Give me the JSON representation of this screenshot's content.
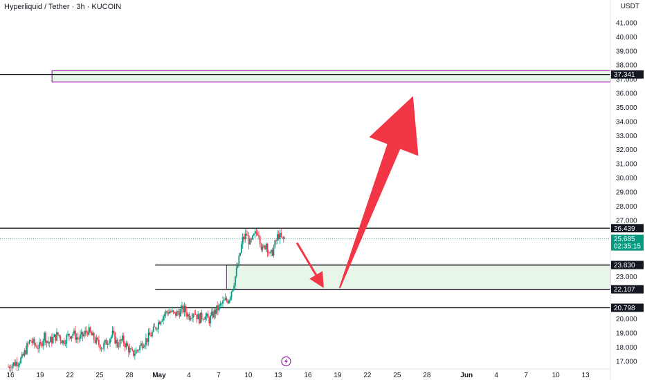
{
  "header": {
    "title": "Hyperliquid / Tether · 3h · KUCOIN",
    "quote_currency": "USDT"
  },
  "colors": {
    "up": "#089981",
    "down": "#f23645",
    "zone_border": "#9c27b0",
    "zone_fill": "#e8f5e9",
    "arrow": "#f23645",
    "level_line": "#000000",
    "current_price_bg": "#089981"
  },
  "chart_data": {
    "type": "candlestick",
    "y_axis": {
      "min": 16.6,
      "max": 42.0,
      "ticks": [
        17,
        18,
        19,
        20,
        21,
        22,
        23,
        24,
        25,
        26,
        27,
        28,
        29,
        30,
        31,
        32,
        33,
        34,
        35,
        36,
        37,
        38,
        39,
        40,
        41
      ],
      "tick_labels": [
        "17.000",
        "18.000",
        "19.000",
        "20.000",
        "",
        "",
        "23.000",
        "",
        "",
        "",
        "27.000",
        "28.000",
        "29.000",
        "30.000",
        "31.000",
        "32.000",
        "33.000",
        "34.000",
        "35.000",
        "36.000",
        "37.000",
        "38.000",
        "39.000",
        "40.000",
        "41.000"
      ]
    },
    "x_axis": {
      "ticks": [
        {
          "label": "16",
          "day": 16
        },
        {
          "label": "19",
          "day": 19
        },
        {
          "label": "22",
          "day": 22
        },
        {
          "label": "25",
          "day": 25
        },
        {
          "label": "28",
          "day": 28
        },
        {
          "label": "May",
          "day": 31,
          "bold": true
        },
        {
          "label": "4",
          "day": 34
        },
        {
          "label": "7",
          "day": 37
        },
        {
          "label": "10",
          "day": 40
        },
        {
          "label": "13",
          "day": 43
        },
        {
          "label": "16",
          "day": 46
        },
        {
          "label": "19",
          "day": 49
        },
        {
          "label": "22",
          "day": 52
        },
        {
          "label": "25",
          "day": 55
        },
        {
          "label": "28",
          "day": 58
        },
        {
          "label": "Jun",
          "day": 62,
          "bold": true
        },
        {
          "label": "4",
          "day": 65
        },
        {
          "label": "7",
          "day": 68
        },
        {
          "label": "10",
          "day": 71
        },
        {
          "label": "13",
          "day": 74
        }
      ]
    },
    "price_path": [
      [
        15.8,
        16.6
      ],
      [
        16.5,
        16.9
      ],
      [
        17.2,
        17.2
      ],
      [
        17.6,
        17.9
      ],
      [
        18.0,
        18.5
      ],
      [
        18.4,
        18.2
      ],
      [
        19.0,
        18.0
      ],
      [
        19.4,
        18.9
      ],
      [
        19.8,
        18.3
      ],
      [
        20.3,
        18.6
      ],
      [
        20.8,
        18.9
      ],
      [
        21.3,
        18.4
      ],
      [
        21.8,
        18.8
      ],
      [
        22.3,
        19.0
      ],
      [
        22.8,
        18.6
      ],
      [
        23.3,
        18.8
      ],
      [
        23.8,
        19.2
      ],
      [
        24.3,
        18.7
      ],
      [
        24.8,
        18.3
      ],
      [
        25.3,
        18.0
      ],
      [
        25.8,
        18.5
      ],
      [
        26.3,
        18.9
      ],
      [
        26.8,
        18.2
      ],
      [
        27.3,
        18.5
      ],
      [
        27.8,
        18.0
      ],
      [
        28.3,
        17.5
      ],
      [
        28.8,
        17.8
      ],
      [
        29.3,
        18.3
      ],
      [
        29.8,
        18.6
      ],
      [
        30.3,
        19.0
      ],
      [
        30.8,
        19.6
      ],
      [
        31.2,
        20.1
      ],
      [
        31.6,
        20.4
      ],
      [
        32.0,
        20.6
      ],
      [
        32.5,
        20.3
      ],
      [
        33.0,
        20.5
      ],
      [
        33.5,
        20.7
      ],
      [
        34.0,
        20.2
      ],
      [
        34.5,
        20.6
      ],
      [
        35.0,
        20.0
      ],
      [
        35.5,
        20.3
      ],
      [
        36.0,
        19.9
      ],
      [
        36.5,
        20.4
      ],
      [
        37.0,
        20.8
      ],
      [
        37.5,
        21.2
      ],
      [
        38.0,
        21.4
      ],
      [
        38.5,
        22.5
      ],
      [
        39.0,
        24.0
      ],
      [
        39.4,
        25.6
      ],
      [
        39.8,
        26.0
      ],
      [
        40.2,
        25.3
      ],
      [
        40.6,
        25.9
      ],
      [
        41.0,
        26.3
      ],
      [
        41.4,
        24.8
      ],
      [
        41.8,
        25.4
      ],
      [
        42.2,
        24.4
      ],
      [
        42.6,
        25.1
      ],
      [
        43.0,
        26.0
      ],
      [
        43.4,
        25.6
      ],
      [
        43.7,
        25.7
      ]
    ],
    "levels": [
      {
        "price": 37.341,
        "label": "37.341",
        "x_start_day": 14.0
      },
      {
        "price": 26.439,
        "label": "26.439",
        "x_start_day": 14.0
      },
      {
        "price": 23.83,
        "label": "23.830",
        "x_start_day": 30.6
      },
      {
        "price": 22.107,
        "label": "22.107",
        "x_start_day": 30.6
      },
      {
        "price": 20.798,
        "label": "20.798",
        "x_start_day": 14.0
      }
    ],
    "zones": [
      {
        "top": 37.6,
        "bottom": 36.8,
        "x_start_day": 20.2
      },
      {
        "top": 23.83,
        "bottom": 22.107,
        "x_start_day": 37.8
      }
    ],
    "current_price": {
      "value": 25.685,
      "label": "25.685",
      "countdown": "02:35:15"
    },
    "arrows": [
      {
        "from": [
          44.9,
          25.4
        ],
        "to": [
          47.6,
          22.2
        ],
        "width": "thin"
      },
      {
        "from": [
          49.2,
          22.2
        ],
        "to": [
          56.6,
          35.8
        ],
        "width": "wide"
      }
    ]
  }
}
